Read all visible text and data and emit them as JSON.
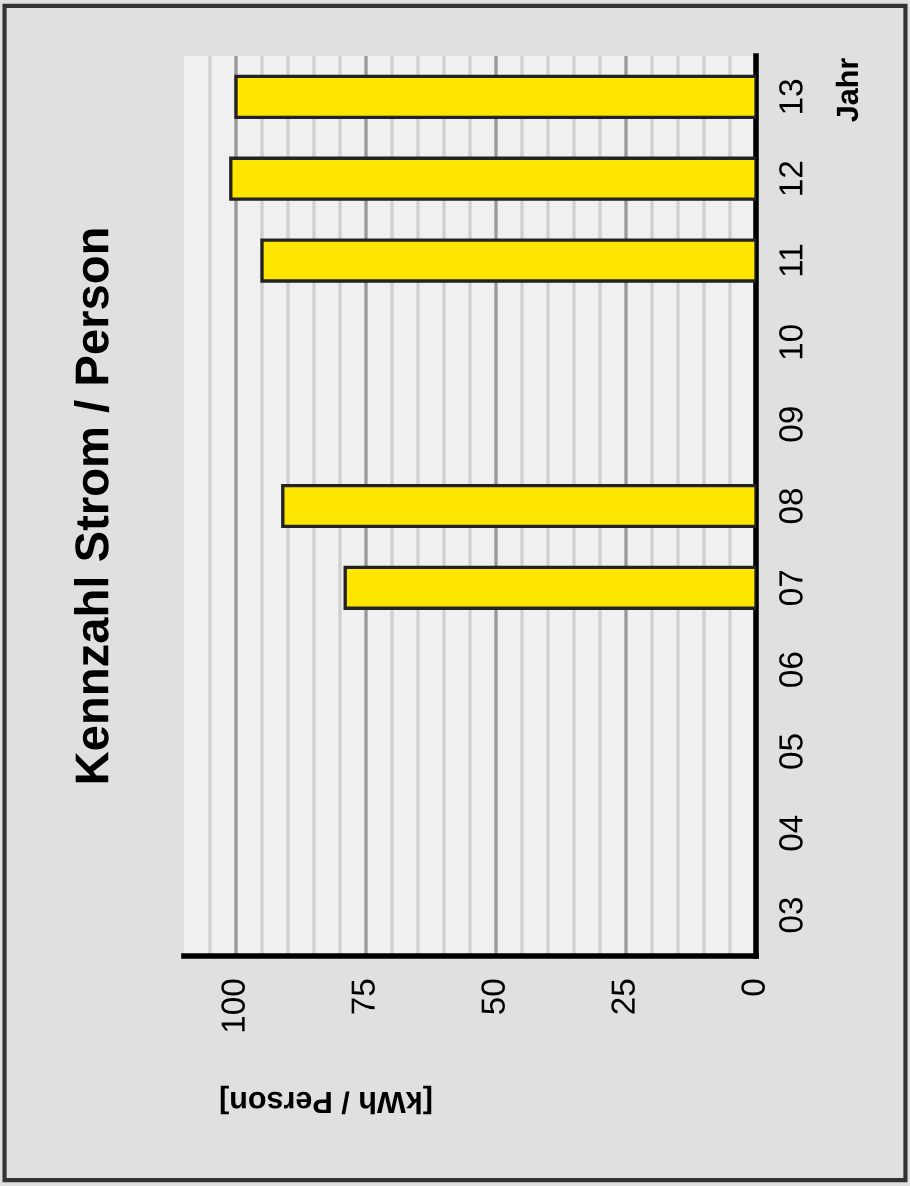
{
  "chart_data": {
    "type": "bar",
    "orientation": "horizontal",
    "title": "Kennzahl Strom / Person",
    "xlabel": "[kWh / Person]",
    "ylabel": "Jahr",
    "categories": [
      "13",
      "12",
      "11",
      "10",
      "09",
      "08",
      "07",
      "06",
      "05",
      "04",
      "03"
    ],
    "values": [
      100,
      101,
      95,
      null,
      null,
      91,
      79,
      null,
      null,
      null,
      null
    ],
    "color": "#ffe600",
    "xlim": [
      110,
      0
    ],
    "xticks": [
      0,
      {
        "value": 5,
        "label": null
      },
      {
        "value": 10,
        "label": null
      },
      {
        "value": 15,
        "label": null
      },
      {
        "value": 20,
        "label": null
      },
      25,
      {
        "value": 30,
        "label": null
      },
      {
        "value": 35,
        "label": null
      },
      {
        "value": 40,
        "label": null
      },
      {
        "value": 45,
        "label": null
      },
      50,
      {
        "value": 55,
        "label": null
      },
      {
        "value": 60,
        "label": null
      },
      {
        "value": 65,
        "label": null
      },
      {
        "value": 70,
        "label": null
      },
      75,
      {
        "value": 80,
        "label": null
      },
      {
        "value": 85,
        "label": null
      },
      {
        "value": 90,
        "label": null
      },
      {
        "value": 95,
        "label": null
      },
      100,
      {
        "value": 105,
        "label": null
      }
    ],
    "grid": "x",
    "legend": false
  }
}
